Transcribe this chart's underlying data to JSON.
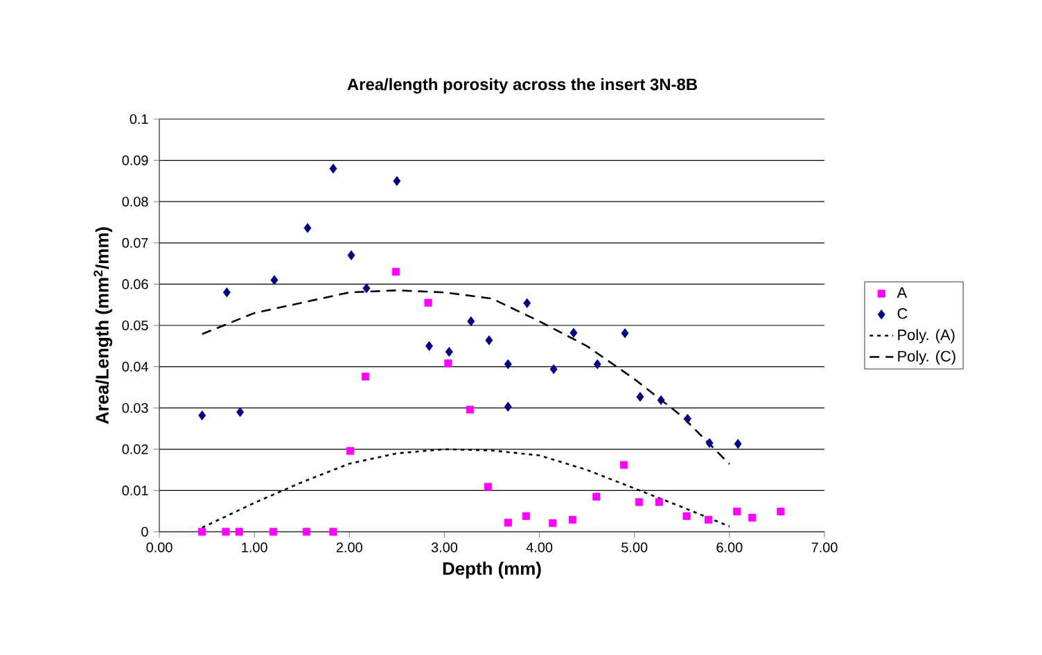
{
  "chart_data": {
    "type": "scatter",
    "title": "Area/length porosity across the insert 3N-8B",
    "xlabel": "Depth (mm)",
    "ylabel": "Area/Length (mm$^{2}$/mm)",
    "xlim": [
      0,
      7
    ],
    "ylim": [
      0,
      0.1
    ],
    "xticks": [
      {
        "value": 0,
        "label": "0.00"
      },
      {
        "value": 1,
        "label": "1.00"
      },
      {
        "value": 2,
        "label": "2.00"
      },
      {
        "value": 3,
        "label": "3.00"
      },
      {
        "value": 4,
        "label": "4.00"
      },
      {
        "value": 5,
        "label": "5.00"
      },
      {
        "value": 6,
        "label": "6.00"
      },
      {
        "value": 7,
        "label": "7.00"
      }
    ],
    "yticks": [
      0,
      0.01,
      0.02,
      0.03,
      0.04,
      0.05,
      0.06,
      0.07,
      0.08,
      0.09,
      0.1
    ],
    "grid": "y",
    "legend": "right",
    "series": [
      {
        "name": "A",
        "marker": "square",
        "color": "#ff00ff",
        "x": [
          0.45,
          0.7,
          0.84,
          1.2,
          1.55,
          1.83,
          2.01,
          2.17,
          2.49,
          2.83,
          3.04,
          3.27,
          3.46,
          3.67,
          3.86,
          4.14,
          4.35,
          4.6,
          4.89,
          5.05,
          5.26,
          5.55,
          5.78,
          6.08,
          6.24,
          6.54
        ],
        "values": [
          0,
          0,
          0,
          0,
          0,
          0,
          0.0196,
          0.0376,
          0.063,
          0.0555,
          0.0408,
          0.0296,
          0.0109,
          0.0022,
          0.0038,
          0.0021,
          0.0029,
          0.0085,
          0.0162,
          0.0072,
          0.0072,
          0.0038,
          0.0029,
          0.0049,
          0.0034,
          0.0049
        ]
      },
      {
        "name": "C",
        "marker": "diamond",
        "color": "#000080",
        "x": [
          0.45,
          0.71,
          0.85,
          1.21,
          1.56,
          1.83,
          2.02,
          2.18,
          2.5,
          2.84,
          3.05,
          3.28,
          3.47,
          3.67,
          3.67,
          3.87,
          4.15,
          4.36,
          4.61,
          4.9,
          5.06,
          5.28,
          5.56,
          5.79,
          6.09
        ],
        "values": [
          0.0282,
          0.058,
          0.029,
          0.061,
          0.0736,
          0.088,
          0.067,
          0.059,
          0.085,
          0.045,
          0.0436,
          0.051,
          0.0464,
          0.0406,
          0.0303,
          0.0554,
          0.0394,
          0.0482,
          0.0406,
          0.0481,
          0.0327,
          0.0319,
          0.0274,
          0.0215,
          0.0213
        ]
      },
      {
        "name": "Poly. (A)",
        "type": "line",
        "marker": "none",
        "line_style": "dotted",
        "color": "#000000",
        "x": [
          0.45,
          1,
          1.5,
          2,
          2.5,
          3,
          3.5,
          4,
          4.5,
          5,
          5.5,
          6.0
        ],
        "values": [
          0.001,
          0.007,
          0.012,
          0.0165,
          0.019,
          0.02,
          0.0197,
          0.0185,
          0.015,
          0.0105,
          0.006,
          0.0013
        ]
      },
      {
        "name": "Poly. (C)",
        "type": "line",
        "marker": "none",
        "line_style": "dashed",
        "color": "#000000",
        "x": [
          0.45,
          1,
          1.5,
          2,
          2.5,
          3,
          3.5,
          4,
          4.5,
          5,
          5.5,
          6.0
        ],
        "values": [
          0.0479,
          0.053,
          0.0555,
          0.058,
          0.0585,
          0.058,
          0.0565,
          0.051,
          0.045,
          0.037,
          0.028,
          0.0164
        ]
      }
    ]
  }
}
